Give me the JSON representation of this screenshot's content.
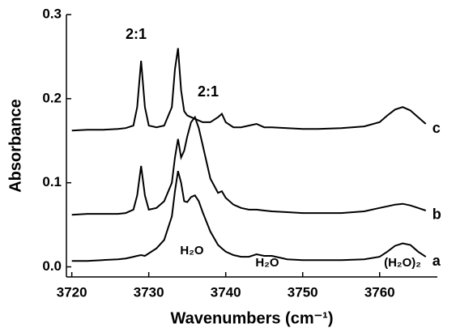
{
  "chart_data": {
    "type": "line",
    "x_label": "Wavenumbers (cm⁻¹)",
    "y_label": "Absorbance",
    "xlim": [
      3719.3,
      3767.5
    ],
    "ylim": [
      -0.012,
      0.3
    ],
    "xticks": [
      3720,
      3730,
      3740,
      3750,
      3760
    ],
    "yticks": [
      {
        "value": 0,
        "label": "0.0"
      },
      0.1,
      0.2,
      0.3
    ],
    "annotations": [
      "2:1",
      "2:1",
      "H₂O",
      "H₂O",
      "(H₂O)₂"
    ],
    "x": [
      3720,
      3722,
      3724,
      3726,
      3727,
      3728,
      3728.5,
      3729,
      3729.5,
      3730,
      3731,
      3732,
      3733,
      3733.4,
      3733.8,
      3734.2,
      3734.6,
      3735,
      3735.5,
      3736,
      3736.5,
      3737,
      3738,
      3739,
      3739.5,
      3740,
      3741,
      3742,
      3743,
      3744,
      3745,
      3746,
      3748,
      3750,
      3752,
      3755,
      3758,
      3760,
      3761,
      3762,
      3763,
      3764,
      3765,
      3766
    ],
    "series": [
      {
        "name": "a",
        "color": "#000000",
        "values": [
          0.007,
          0.007,
          0.008,
          0.009,
          0.01,
          0.012,
          0.013,
          0.014,
          0.013,
          0.016,
          0.022,
          0.032,
          0.06,
          0.09,
          0.114,
          0.1,
          0.078,
          0.077,
          0.083,
          0.085,
          0.078,
          0.065,
          0.042,
          0.026,
          0.022,
          0.018,
          0.014,
          0.012,
          0.012,
          0.015,
          0.013,
          0.013,
          0.009,
          0.008,
          0.008,
          0.008,
          0.009,
          0.012,
          0.018,
          0.025,
          0.028,
          0.026,
          0.018,
          0.012
        ]
      },
      {
        "name": "b",
        "color": "#000000",
        "values": [
          0.062,
          0.063,
          0.063,
          0.063,
          0.064,
          0.068,
          0.085,
          0.12,
          0.085,
          0.068,
          0.07,
          0.078,
          0.1,
          0.13,
          0.152,
          0.13,
          0.138,
          0.155,
          0.172,
          0.178,
          0.165,
          0.145,
          0.105,
          0.088,
          0.09,
          0.082,
          0.074,
          0.07,
          0.068,
          0.068,
          0.067,
          0.066,
          0.065,
          0.064,
          0.064,
          0.064,
          0.066,
          0.07,
          0.072,
          0.074,
          0.075,
          0.073,
          0.07,
          0.067
        ]
      },
      {
        "name": "c",
        "color": "#000000",
        "values": [
          0.162,
          0.163,
          0.163,
          0.164,
          0.165,
          0.168,
          0.19,
          0.245,
          0.19,
          0.168,
          0.166,
          0.168,
          0.19,
          0.235,
          0.26,
          0.21,
          0.185,
          0.18,
          0.178,
          0.176,
          0.174,
          0.172,
          0.172,
          0.178,
          0.182,
          0.172,
          0.166,
          0.166,
          0.168,
          0.17,
          0.166,
          0.166,
          0.165,
          0.164,
          0.164,
          0.165,
          0.167,
          0.172,
          0.18,
          0.187,
          0.19,
          0.186,
          0.178,
          0.17
        ]
      }
    ]
  }
}
